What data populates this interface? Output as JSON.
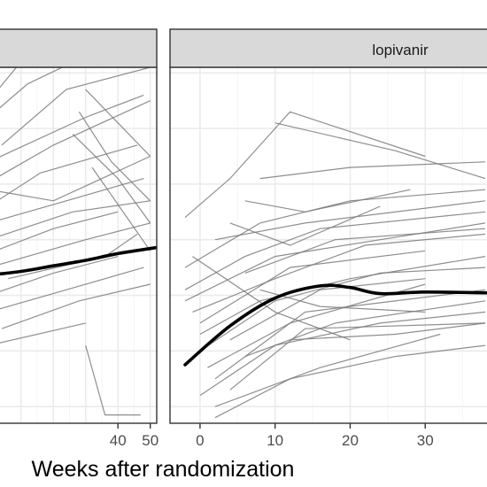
{
  "chart_data": {
    "type": "line",
    "xlabel": "Weeks after randomization",
    "ylabel": "",
    "grid": true,
    "panels": [
      {
        "name": "",
        "xlim": [
          -2,
          52
        ],
        "x_ticks": [
          40,
          50
        ],
        "subjects": [
          [
            [
              0,
              58
            ],
            [
              20,
              72
            ],
            [
              48,
              80
            ]
          ],
          [
            [
              0,
              55
            ],
            [
              12,
              61
            ],
            [
              30,
              66
            ],
            [
              50,
              68
            ]
          ],
          [
            [
              4,
              50
            ],
            [
              24,
              60
            ],
            [
              50,
              64
            ]
          ],
          [
            [
              0,
              47
            ],
            [
              30,
              55
            ],
            [
              48,
              59
            ]
          ],
          [
            [
              2,
              44
            ],
            [
              20,
              50
            ],
            [
              50,
              58
            ]
          ],
          [
            [
              0,
              42
            ],
            [
              20,
              40
            ],
            [
              50,
              48
            ]
          ],
          [
            [
              0,
              39
            ],
            [
              16,
              45
            ],
            [
              46,
              50
            ]
          ],
          [
            [
              0,
              36
            ],
            [
              24,
              40
            ],
            [
              48,
              44
            ]
          ],
          [
            [
              0,
              33
            ],
            [
              26,
              38
            ],
            [
              50,
              40
            ]
          ],
          [
            [
              2,
              31
            ],
            [
              20,
              35
            ],
            [
              40,
              38
            ]
          ],
          [
            [
              0,
              28
            ],
            [
              30,
              33
            ],
            [
              50,
              36
            ]
          ],
          [
            [
              6,
              26
            ],
            [
              36,
              30
            ],
            [
              46,
              34
            ]
          ],
          [
            [
              0,
              23
            ],
            [
              20,
              27
            ],
            [
              40,
              30
            ]
          ],
          [
            [
              0,
              20
            ],
            [
              24,
              24
            ],
            [
              48,
              28
            ]
          ],
          [
            [
              4,
              17
            ],
            [
              28,
              22
            ],
            [
              50,
              25
            ]
          ],
          [
            [
              0,
              14
            ],
            [
              30,
              18
            ]
          ],
          [
            [
              30,
              60
            ],
            [
              50,
              48
            ]
          ],
          [
            [
              28,
              56
            ],
            [
              38,
              47
            ],
            [
              50,
              40
            ]
          ],
          [
            [
              26,
              52
            ],
            [
              40,
              44
            ],
            [
              50,
              36
            ]
          ],
          [
            [
              32,
              46
            ],
            [
              50,
              31
            ]
          ],
          [
            [
              30,
              14
            ],
            [
              36,
              1.5
            ],
            [
              47,
              1.5
            ]
          ]
        ],
        "mean": [
          [
            -2,
            26.5
          ],
          [
            10,
            27.3
          ],
          [
            20,
            28.3
          ],
          [
            30,
            29.3
          ],
          [
            40,
            30.5
          ],
          [
            52,
            31.6
          ]
        ]
      },
      {
        "name": "lopivanir",
        "xlim": [
          -4,
          40
        ],
        "x_ticks": [
          0,
          10,
          20,
          30
        ],
        "subjects": [
          [
            [
              -2,
              37
            ],
            [
              4,
              44
            ],
            [
              12,
              56
            ],
            [
              30,
              48
            ]
          ],
          [
            [
              -2,
              28
            ],
            [
              8,
              36
            ],
            [
              20,
              40
            ],
            [
              38,
              42
            ]
          ],
          [
            [
              -2,
              24
            ],
            [
              6,
              30
            ],
            [
              16,
              35
            ],
            [
              38,
              38
            ]
          ],
          [
            [
              -2,
              22
            ],
            [
              10,
              30
            ],
            [
              24,
              33
            ],
            [
              38,
              36
            ]
          ],
          [
            [
              -1,
              20
            ],
            [
              10,
              26
            ],
            [
              22,
              32
            ],
            [
              38,
              34
            ]
          ],
          [
            [
              0,
              18
            ],
            [
              12,
              28
            ],
            [
              30,
              31
            ]
          ],
          [
            [
              0,
              16
            ],
            [
              8,
              22
            ],
            [
              20,
              26
            ],
            [
              38,
              30
            ]
          ],
          [
            [
              0,
              13
            ],
            [
              10,
              22
            ],
            [
              24,
              27
            ],
            [
              38,
              28
            ]
          ],
          [
            [
              1,
              10
            ],
            [
              12,
              18
            ],
            [
              30,
              25
            ]
          ],
          [
            [
              2,
              8
            ],
            [
              14,
              20
            ],
            [
              38,
              24
            ]
          ],
          [
            [
              0,
              5
            ],
            [
              10,
              14
            ],
            [
              24,
              18
            ],
            [
              38,
              20
            ]
          ],
          [
            [
              2,
              3
            ],
            [
              16,
              10
            ],
            [
              32,
              16
            ]
          ],
          [
            [
              2,
              1
            ],
            [
              12,
              8
            ],
            [
              26,
              12
            ],
            [
              38,
              14
            ]
          ],
          [
            [
              4,
              15
            ],
            [
              16,
              24
            ],
            [
              30,
              26
            ]
          ],
          [
            [
              6,
              12
            ],
            [
              18,
              18
            ],
            [
              38,
              22
            ]
          ],
          [
            [
              10,
              54
            ],
            [
              26,
              49
            ],
            [
              38,
              44
            ]
          ],
          [
            [
              8,
              44
            ],
            [
              20,
              46
            ],
            [
              38,
              47
            ]
          ],
          [
            [
              6,
              40
            ],
            [
              14,
              38
            ],
            [
              28,
              42
            ]
          ],
          [
            [
              4,
              36
            ],
            [
              12,
              32
            ],
            [
              24,
              39
            ]
          ],
          [
            [
              2,
              33
            ],
            [
              14,
              36
            ],
            [
              38,
              40
            ]
          ],
          [
            [
              6,
              27
            ],
            [
              18,
              33
            ],
            [
              38,
              35
            ]
          ],
          [
            [
              8,
              24
            ],
            [
              16,
              21
            ],
            [
              30,
              20
            ]
          ],
          [
            [
              4,
              6
            ],
            [
              14,
              17
            ],
            [
              38,
              18
            ]
          ],
          [
            [
              12,
              15
            ],
            [
              26,
              16
            ],
            [
              38,
              18
            ]
          ],
          [
            [
              -1,
              30
            ],
            [
              10,
              20
            ],
            [
              20,
              15
            ]
          ]
        ],
        "mean": [
          [
            -2,
            10.5
          ],
          [
            4,
            17.5
          ],
          [
            10,
            22.5
          ],
          [
            16,
            24.7
          ],
          [
            20,
            24.4
          ],
          [
            24,
            23.3
          ],
          [
            30,
            23.6
          ],
          [
            40,
            23.4
          ]
        ]
      }
    ]
  },
  "colors": {
    "panel_background": "#ffffff",
    "panel_border": "#333333",
    "grid_major": "#ebebeb",
    "grid_minor": "#f5f5f5",
    "strip_fill": "#d9d9d9",
    "subject_line": "#7a7a7a",
    "mean_line": "#000000",
    "tick_text": "#4d4d4d"
  }
}
